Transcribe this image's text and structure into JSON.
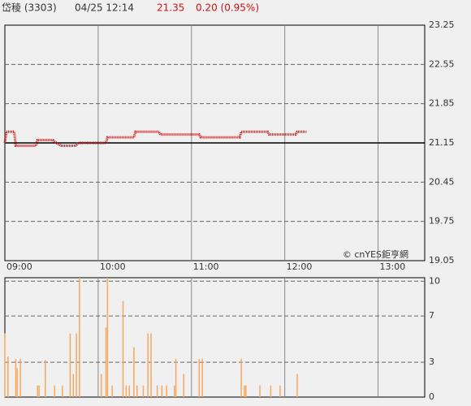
{
  "header": {
    "name": "岱稜 (3303)",
    "time": "04/25 12:14",
    "price": "21.35",
    "change": "0.20 (0.95%)"
  },
  "watermark": "© cnYES鉅亨網",
  "chart_data": [
    {
      "type": "line",
      "color": "#cc1111",
      "x": [
        "09:00",
        "09:01",
        "09:06",
        "09:07",
        "09:20",
        "09:21",
        "09:31",
        "09:33",
        "09:36",
        "09:46",
        "09:47",
        "10:05",
        "10:06",
        "10:23",
        "10:24",
        "10:39",
        "10:40",
        "11:05",
        "11:06",
        "11:31",
        "11:32",
        "11:49",
        "11:50",
        "12:07",
        "12:08",
        "12:14"
      ],
      "values": [
        21.15,
        21.35,
        21.35,
        21.1,
        21.1,
        21.2,
        21.2,
        21.15,
        21.1,
        21.1,
        21.15,
        21.15,
        21.25,
        21.25,
        21.35,
        21.35,
        21.3,
        21.3,
        21.25,
        21.25,
        21.35,
        21.35,
        21.3,
        21.3,
        21.35,
        21.35
      ],
      "xlim": [
        "09:00",
        "13:30"
      ],
      "xticks": [
        "09:00",
        "10:00",
        "11:00",
        "12:00",
        "13:00"
      ],
      "ylim": [
        19.05,
        23.25
      ],
      "yticks": [
        19.05,
        19.75,
        20.45,
        21.15,
        21.85,
        22.55,
        23.25
      ],
      "reference": 21.15
    },
    {
      "type": "bar",
      "color": "#f5a860",
      "x": [
        "09:00",
        "09:02",
        "09:07",
        "09:08",
        "09:10",
        "09:21",
        "09:22",
        "09:26",
        "09:32",
        "09:37",
        "09:42",
        "09:44",
        "09:46",
        "09:48",
        "10:02",
        "10:05",
        "10:06",
        "10:09",
        "10:16",
        "10:18",
        "10:20",
        "10:23",
        "10:25",
        "10:29",
        "10:32",
        "10:34",
        "10:38",
        "10:41",
        "10:44",
        "10:49",
        "10:50",
        "10:55",
        "11:05",
        "11:07",
        "11:32",
        "11:34",
        "11:35",
        "11:44",
        "11:51",
        "11:57",
        "12:08"
      ],
      "values": [
        5.5,
        3.5,
        3.3,
        2.5,
        3.3,
        1,
        1,
        3.2,
        1,
        1,
        5.5,
        2,
        5.5,
        10.3,
        2,
        6,
        10.3,
        1,
        8.3,
        1,
        1,
        4.3,
        1,
        1,
        5.5,
        5.5,
        1,
        1,
        1,
        1,
        3.3,
        2,
        3.3,
        3.3,
        3.3,
        1,
        1,
        1,
        1,
        1,
        2
      ],
      "xlim": [
        "09:00",
        "13:30"
      ],
      "ylim": [
        0,
        10.3
      ],
      "yticks": [
        0,
        3,
        7,
        10
      ]
    }
  ]
}
